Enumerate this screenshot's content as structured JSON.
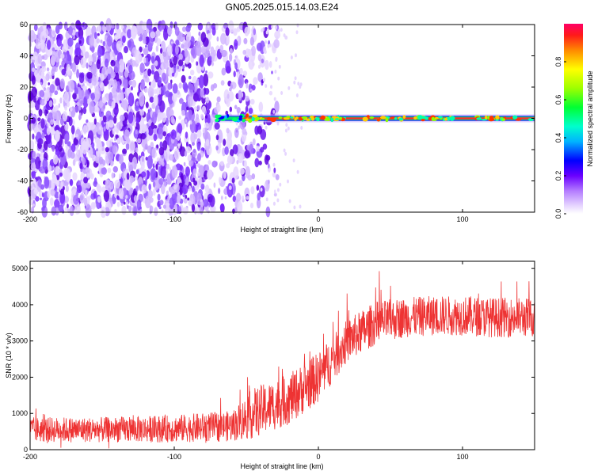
{
  "title": "GN05.2025.015.14.03.E24",
  "chart_data": [
    {
      "type": "heatmap",
      "xlabel": "Height of straight line (km)",
      "ylabel": "Frequency (Hz)",
      "xlim": [
        -200,
        150
      ],
      "ylim": [
        -60,
        60
      ],
      "xticks": [
        "-200",
        "-100",
        "0",
        "100"
      ],
      "yticks": [
        "60",
        "40",
        "20",
        "0",
        "-20",
        "-40",
        "-60"
      ],
      "colorbar": {
        "label": "Normalized spectral amplitude",
        "range": [
          0,
          1
        ],
        "ticks": [
          "0.0",
          "0.2",
          "0.4",
          "0.6",
          "0.8"
        ]
      },
      "description_points": {
        "noise_region_x": [
          -200,
          -40
        ],
        "signal_line_x": [
          -75,
          150
        ],
        "signal_frequency": 0
      }
    },
    {
      "type": "line",
      "xlabel": "Height of straight line (km)",
      "ylabel": "SNR (10 * v/v)",
      "xlim": [
        -200,
        150
      ],
      "ylim": [
        0,
        5200
      ],
      "xticks": [
        "-200",
        "-100",
        "0",
        "100"
      ],
      "yticks": [
        "0",
        "1000",
        "2000",
        "3000",
        "4000",
        "5000"
      ],
      "series": [
        {
          "color": "#ee3333",
          "trend_x": [
            -200,
            -150,
            -100,
            -60,
            -45,
            -20,
            0,
            20,
            40,
            60,
            80,
            100,
            120,
            150
          ],
          "trend_y": [
            550,
            550,
            580,
            650,
            1000,
            1400,
            2000,
            3000,
            3500,
            3650,
            3700,
            3700,
            3650,
            3650
          ],
          "noise_amplitude_y": [
            350,
            350,
            380,
            420,
            700,
            700,
            700,
            600,
            600,
            550,
            550,
            550,
            550,
            550
          ]
        }
      ]
    }
  ]
}
